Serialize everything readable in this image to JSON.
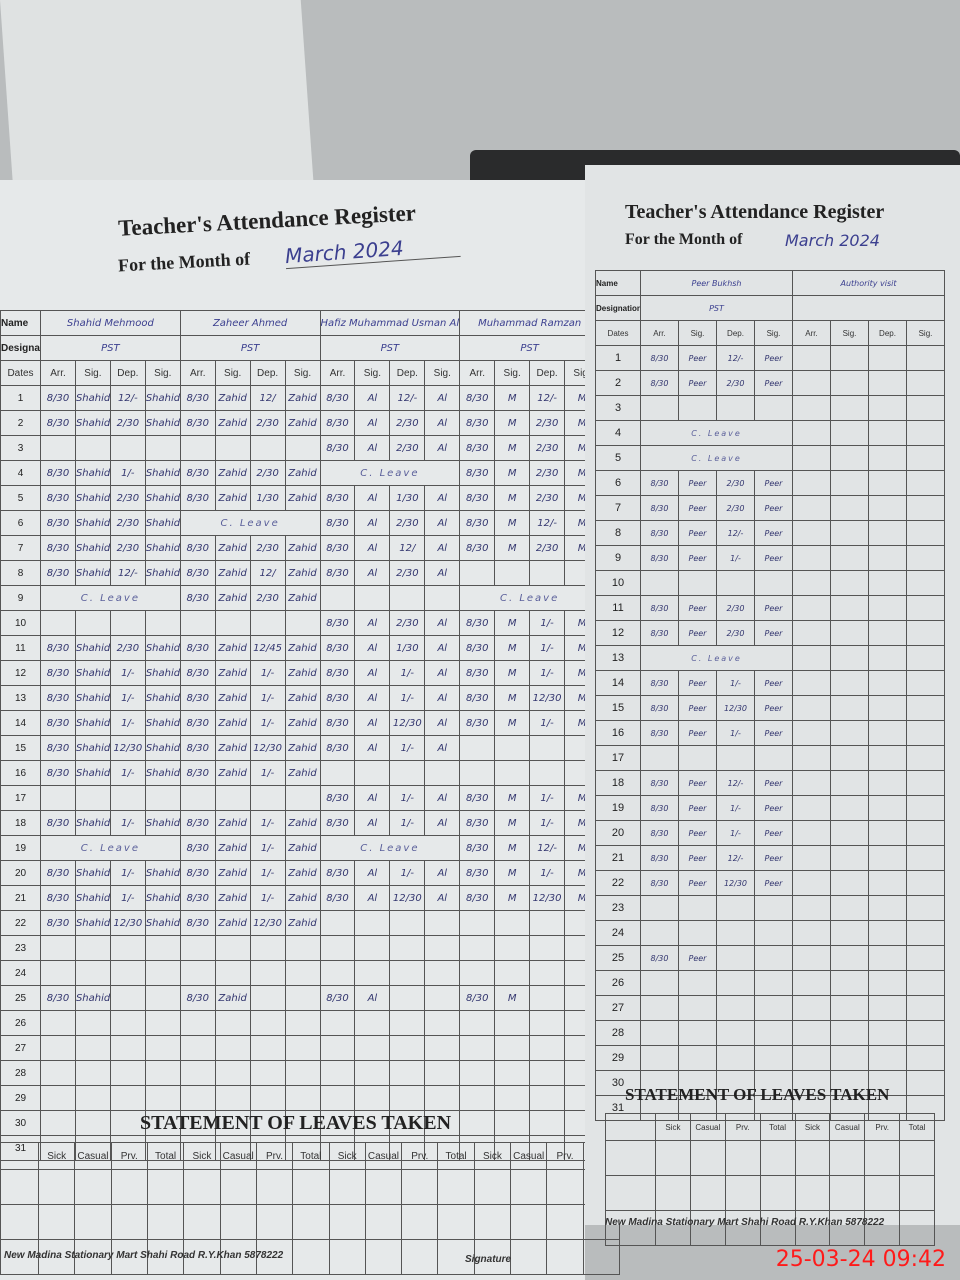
{
  "register": {
    "title": "Teacher's Attendance Register",
    "month_label": "For the Month of",
    "month_value": "March 2024",
    "name_label": "Name",
    "designation_label": "Designation:",
    "dates_label": "Dates",
    "col_headers": [
      "Arr.",
      "Sig.",
      "Dep.",
      "Sig."
    ],
    "left_teachers": [
      {
        "name": "Shahid Mehmood",
        "designation": "PST",
        "sig": "Shahid",
        "days": [
          [
            "8/30",
            "12/-"
          ],
          [
            "8/30",
            "2/30"
          ],
          null,
          [
            "8/30",
            "1/-"
          ],
          [
            "8/30",
            "2/30"
          ],
          [
            "8/30",
            "2/30"
          ],
          [
            "8/30",
            "2/30"
          ],
          [
            "8/30",
            "12/-"
          ],
          "C. Leave",
          null,
          [
            "8/30",
            "2/30"
          ],
          [
            "8/30",
            "1/-"
          ],
          [
            "8/30",
            "1/-"
          ],
          [
            "8/30",
            "1/-"
          ],
          [
            "8/30",
            "12/30"
          ],
          [
            "8/30",
            "1/-"
          ],
          null,
          [
            "8/30",
            "1/-"
          ],
          "C. Leave",
          [
            "8/30",
            "1/-"
          ],
          [
            "8/30",
            "1/-"
          ],
          [
            "8/30",
            "12/30"
          ],
          null,
          null,
          [
            "8/30",
            ""
          ],
          null,
          null,
          null,
          null,
          null,
          null
        ]
      },
      {
        "name": "Zaheer Ahmed",
        "designation": "PST",
        "sig": "Zahid",
        "days": [
          [
            "8/30",
            "12/"
          ],
          [
            "8/30",
            "2/30"
          ],
          null,
          [
            "8/30",
            "2/30"
          ],
          [
            "8/30",
            "1/30"
          ],
          "C. Leave",
          [
            "8/30",
            "2/30"
          ],
          [
            "8/30",
            "12/"
          ],
          [
            "8/30",
            "2/30"
          ],
          null,
          [
            "8/30",
            "12/45"
          ],
          [
            "8/30",
            "1/-"
          ],
          [
            "8/30",
            "1/-"
          ],
          [
            "8/30",
            "1/-"
          ],
          [
            "8/30",
            "12/30"
          ],
          [
            "8/30",
            "1/-"
          ],
          null,
          [
            "8/30",
            "1/-"
          ],
          [
            "8/30",
            "1/-"
          ],
          [
            "8/30",
            "1/-"
          ],
          [
            "8/30",
            "1/-"
          ],
          [
            "8/30",
            "12/30"
          ],
          null,
          null,
          [
            "8/30",
            ""
          ],
          null,
          null,
          null,
          null,
          null,
          null
        ]
      },
      {
        "name": "Hafiz Muhammad Usman Ali",
        "designation": "PST",
        "sig": "Al",
        "days": [
          [
            "8/30",
            "12/-"
          ],
          [
            "8/30",
            "2/30"
          ],
          [
            "8/30",
            "2/30"
          ],
          "C. Leave",
          [
            "8/30",
            "1/30"
          ],
          [
            "8/30",
            "2/30"
          ],
          [
            "8/30",
            "12/"
          ],
          [
            "8/30",
            "2/30"
          ],
          null,
          [
            "8/30",
            "2/30"
          ],
          [
            "8/30",
            "1/30"
          ],
          [
            "8/30",
            "1/-"
          ],
          [
            "8/30",
            "1/-"
          ],
          [
            "8/30",
            "12/30"
          ],
          [
            "8/30",
            "1/-"
          ],
          null,
          [
            "8/30",
            "1/-"
          ],
          [
            "8/30",
            "1/-"
          ],
          "C. Leave",
          [
            "8/30",
            "1/-"
          ],
          [
            "8/30",
            "12/30"
          ],
          null,
          null,
          null,
          [
            "8/30",
            ""
          ],
          null,
          null,
          null,
          null,
          null,
          null
        ]
      },
      {
        "name": "Muhammad Ramzan",
        "designation": "PST",
        "sig": "M",
        "days": [
          [
            "8/30",
            "12/-"
          ],
          [
            "8/30",
            "2/30"
          ],
          [
            "8/30",
            "2/30"
          ],
          [
            "8/30",
            "2/30"
          ],
          [
            "8/30",
            "2/30"
          ],
          [
            "8/30",
            "12/-"
          ],
          [
            "8/30",
            "2/30"
          ],
          null,
          "C. Leave",
          [
            "8/30",
            "1/-"
          ],
          [
            "8/30",
            "1/-"
          ],
          [
            "8/30",
            "1/-"
          ],
          [
            "8/30",
            "12/30"
          ],
          [
            "8/30",
            "1/-"
          ],
          null,
          null,
          [
            "8/30",
            "1/-"
          ],
          [
            "8/30",
            "1/-"
          ],
          [
            "8/30",
            "12/-"
          ],
          [
            "8/30",
            "1/-"
          ],
          [
            "8/30",
            "12/30"
          ],
          null,
          null,
          null,
          [
            "8/30",
            ""
          ],
          null,
          null,
          null,
          null,
          null,
          null
        ]
      }
    ],
    "right_teachers": [
      {
        "name": "Peer Bukhsh",
        "designation": "PST",
        "sig": "Peer",
        "days": [
          [
            "8/30",
            "12/-"
          ],
          [
            "8/30",
            "2/30"
          ],
          null,
          "C. Leave",
          "C. Leave",
          [
            "8/30",
            "2/30"
          ],
          [
            "8/30",
            "2/30"
          ],
          [
            "8/30",
            "12/-"
          ],
          [
            "8/30",
            "1/-"
          ],
          null,
          [
            "8/30",
            "2/30"
          ],
          [
            "8/30",
            "2/30"
          ],
          "C. Leave",
          [
            "8/30",
            "1/-"
          ],
          [
            "8/30",
            "12/30"
          ],
          [
            "8/30",
            "1/-"
          ],
          null,
          [
            "8/30",
            "12/-"
          ],
          [
            "8/30",
            "1/-"
          ],
          [
            "8/30",
            "1/-"
          ],
          [
            "8/30",
            "12/-"
          ],
          [
            "8/30",
            "12/30"
          ],
          null,
          null,
          [
            "8/30",
            ""
          ],
          null,
          null,
          null,
          null,
          null,
          null
        ]
      },
      {
        "name": "Authority visit",
        "designation": "",
        "sig": "",
        "days": []
      }
    ],
    "leaves": {
      "title": "STATEMENT OF LEAVES TAKEN",
      "headers": [
        "Sick",
        "Casual",
        "Prv.",
        "Total"
      ]
    },
    "footer_left": "New Madina Stationary Mart Shahi Road R.Y.Khan 5878222",
    "signature_label": "Signature",
    "footer_right": "New Madina Stationary Mart Shahi Road R.Y.Khan 5878222"
  },
  "timestamp": "25-03-24  09:42",
  "colors": {
    "ink": "#33366f",
    "timestamp": "#ff1a1a",
    "paper": "#e6e9ea"
  }
}
